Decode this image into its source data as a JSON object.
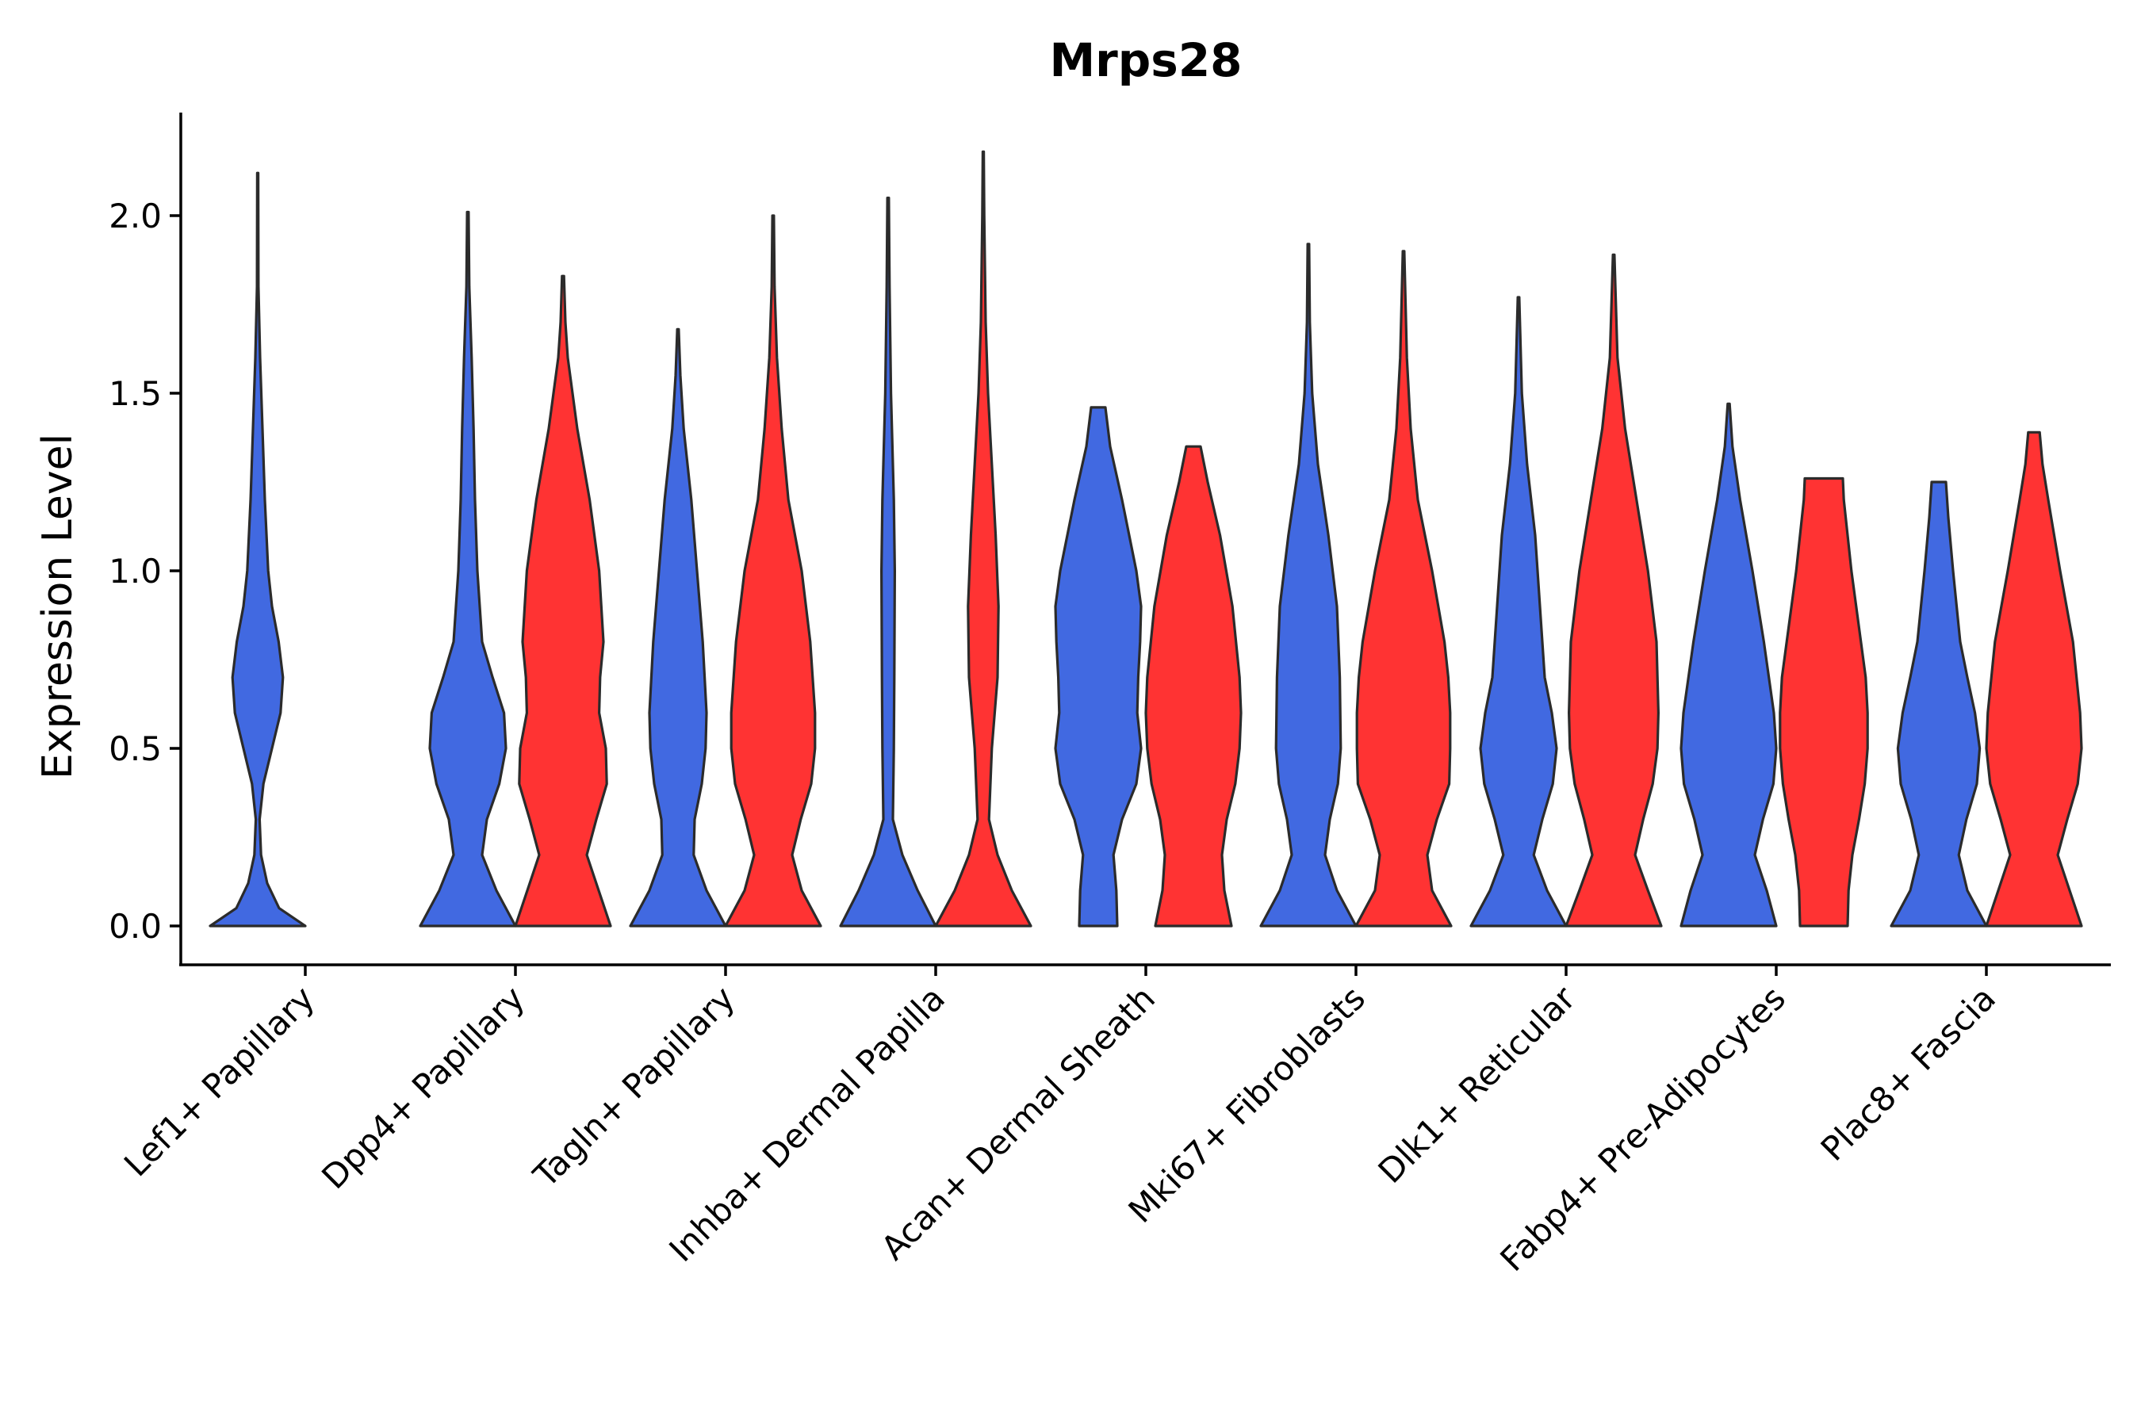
{
  "chart_data": {
    "type": "violin",
    "title": "Mrps28",
    "xlabel": "",
    "ylabel": "Expression Level",
    "ylim": [
      -0.11,
      2.3
    ],
    "yticks": [
      0.0,
      0.5,
      1.0,
      1.5,
      2.0
    ],
    "ytick_labels": [
      "0.0",
      "0.5",
      "1.0",
      "1.5",
      "2.0"
    ],
    "grid": false,
    "legend": "none",
    "series_colors": [
      "#4169E1",
      "#FF3333"
    ],
    "categories": [
      "Lef1+ Papillary",
      "Dpp4+ Papillary",
      "Tagln+ Papillary",
      "Inhba+ Dermal Papilla",
      "Acan+ Dermal Sheath",
      "Mki67+ Fibroblasts",
      "Dlk1+ Reticular",
      "Fabp4+ Pre-Adipocytes",
      "Plac8+ Fascia"
    ],
    "violins": [
      {
        "category": "Lef1+ Papillary",
        "group": 1,
        "color": "#4169E1",
        "max": 2.12,
        "profile": [
          [
            0,
            1.0
          ],
          [
            0.05,
            0.45
          ],
          [
            0.12,
            0.2
          ],
          [
            0.2,
            0.07
          ],
          [
            0.3,
            0.04
          ],
          [
            0.4,
            0.12
          ],
          [
            0.5,
            0.3
          ],
          [
            0.6,
            0.48
          ],
          [
            0.7,
            0.53
          ],
          [
            0.8,
            0.44
          ],
          [
            0.9,
            0.3
          ],
          [
            1.0,
            0.22
          ],
          [
            1.2,
            0.15
          ],
          [
            1.4,
            0.1
          ],
          [
            1.6,
            0.05
          ],
          [
            1.8,
            0.015
          ],
          [
            2.12,
            0.01
          ]
        ]
      },
      {
        "category": "Dpp4+ Papillary",
        "group": 1,
        "color": "#4169E1",
        "max": 2.01,
        "profile": [
          [
            0,
            1.0
          ],
          [
            0.1,
            0.6
          ],
          [
            0.2,
            0.3
          ],
          [
            0.3,
            0.4
          ],
          [
            0.4,
            0.66
          ],
          [
            0.5,
            0.8
          ],
          [
            0.6,
            0.76
          ],
          [
            0.7,
            0.52
          ],
          [
            0.8,
            0.3
          ],
          [
            1.0,
            0.2
          ],
          [
            1.2,
            0.15
          ],
          [
            1.4,
            0.12
          ],
          [
            1.6,
            0.08
          ],
          [
            1.8,
            0.03
          ],
          [
            2.01,
            0.015
          ]
        ]
      },
      {
        "category": "Dpp4+ Papillary",
        "group": 2,
        "color": "#FF3333",
        "max": 1.83,
        "profile": [
          [
            0,
            1.0
          ],
          [
            0.1,
            0.75
          ],
          [
            0.2,
            0.5
          ],
          [
            0.3,
            0.7
          ],
          [
            0.4,
            0.92
          ],
          [
            0.5,
            0.9
          ],
          [
            0.6,
            0.76
          ],
          [
            0.7,
            0.78
          ],
          [
            0.8,
            0.85
          ],
          [
            1.0,
            0.76
          ],
          [
            1.2,
            0.56
          ],
          [
            1.4,
            0.3
          ],
          [
            1.6,
            0.1
          ],
          [
            1.7,
            0.05
          ],
          [
            1.83,
            0.02
          ]
        ]
      },
      {
        "category": "Tagln+ Papillary",
        "group": 1,
        "color": "#4169E1",
        "max": 1.68,
        "profile": [
          [
            0,
            1.0
          ],
          [
            0.1,
            0.6
          ],
          [
            0.2,
            0.33
          ],
          [
            0.3,
            0.35
          ],
          [
            0.4,
            0.5
          ],
          [
            0.5,
            0.58
          ],
          [
            0.6,
            0.6
          ],
          [
            0.8,
            0.52
          ],
          [
            1.0,
            0.4
          ],
          [
            1.2,
            0.28
          ],
          [
            1.4,
            0.12
          ],
          [
            1.55,
            0.05
          ],
          [
            1.68,
            0.015
          ]
        ]
      },
      {
        "category": "Tagln+ Papillary",
        "group": 2,
        "color": "#FF3333",
        "max": 2.0,
        "profile": [
          [
            0,
            1.0
          ],
          [
            0.1,
            0.6
          ],
          [
            0.2,
            0.4
          ],
          [
            0.3,
            0.58
          ],
          [
            0.4,
            0.8
          ],
          [
            0.5,
            0.88
          ],
          [
            0.6,
            0.88
          ],
          [
            0.8,
            0.78
          ],
          [
            1.0,
            0.6
          ],
          [
            1.2,
            0.32
          ],
          [
            1.4,
            0.18
          ],
          [
            1.6,
            0.08
          ],
          [
            1.8,
            0.03
          ],
          [
            2.0,
            0.015
          ]
        ]
      },
      {
        "category": "Inhba+ Dermal Papilla",
        "group": 1,
        "color": "#4169E1",
        "max": 2.05,
        "profile": [
          [
            0,
            1.0
          ],
          [
            0.1,
            0.62
          ],
          [
            0.2,
            0.3
          ],
          [
            0.3,
            0.1
          ],
          [
            0.5,
            0.12
          ],
          [
            0.7,
            0.13
          ],
          [
            1.0,
            0.14
          ],
          [
            1.2,
            0.12
          ],
          [
            1.5,
            0.06
          ],
          [
            1.8,
            0.03
          ],
          [
            2.05,
            0.015
          ]
        ]
      },
      {
        "category": "Inhba+ Dermal Papilla",
        "group": 2,
        "color": "#FF3333",
        "max": 2.18,
        "profile": [
          [
            0,
            1.0
          ],
          [
            0.1,
            0.6
          ],
          [
            0.2,
            0.3
          ],
          [
            0.3,
            0.12
          ],
          [
            0.5,
            0.18
          ],
          [
            0.7,
            0.3
          ],
          [
            0.9,
            0.32
          ],
          [
            1.1,
            0.26
          ],
          [
            1.3,
            0.18
          ],
          [
            1.5,
            0.1
          ],
          [
            1.7,
            0.05
          ],
          [
            2.0,
            0.02
          ],
          [
            2.18,
            0.01
          ]
        ]
      },
      {
        "category": "Acan+ Dermal Sheath",
        "group": 1,
        "color": "#4169E1",
        "max": 1.46,
        "profile": [
          [
            0,
            0.4
          ],
          [
            0.1,
            0.38
          ],
          [
            0.2,
            0.32
          ],
          [
            0.3,
            0.5
          ],
          [
            0.4,
            0.8
          ],
          [
            0.5,
            0.9
          ],
          [
            0.6,
            0.82
          ],
          [
            0.7,
            0.84
          ],
          [
            0.8,
            0.88
          ],
          [
            0.9,
            0.9
          ],
          [
            1.0,
            0.8
          ],
          [
            1.2,
            0.5
          ],
          [
            1.35,
            0.25
          ],
          [
            1.46,
            0.15
          ]
        ]
      },
      {
        "category": "Acan+ Dermal Sheath",
        "group": 2,
        "color": "#FF3333",
        "max": 1.35,
        "profile": [
          [
            0,
            0.8
          ],
          [
            0.1,
            0.65
          ],
          [
            0.2,
            0.6
          ],
          [
            0.3,
            0.7
          ],
          [
            0.4,
            0.88
          ],
          [
            0.5,
            0.97
          ],
          [
            0.6,
            1.0
          ],
          [
            0.7,
            0.97
          ],
          [
            0.9,
            0.82
          ],
          [
            1.1,
            0.56
          ],
          [
            1.25,
            0.3
          ],
          [
            1.35,
            0.15
          ]
        ]
      },
      {
        "category": "Mki67+ Fibroblasts",
        "group": 1,
        "color": "#4169E1",
        "max": 1.92,
        "profile": [
          [
            0,
            1.0
          ],
          [
            0.1,
            0.6
          ],
          [
            0.2,
            0.35
          ],
          [
            0.3,
            0.45
          ],
          [
            0.4,
            0.62
          ],
          [
            0.5,
            0.68
          ],
          [
            0.7,
            0.66
          ],
          [
            0.9,
            0.6
          ],
          [
            1.1,
            0.42
          ],
          [
            1.3,
            0.2
          ],
          [
            1.5,
            0.08
          ],
          [
            1.7,
            0.03
          ],
          [
            1.92,
            0.015
          ]
        ]
      },
      {
        "category": "Mki67+ Fibroblasts",
        "group": 2,
        "color": "#FF3333",
        "max": 1.9,
        "profile": [
          [
            0,
            1.0
          ],
          [
            0.1,
            0.6
          ],
          [
            0.2,
            0.5
          ],
          [
            0.3,
            0.7
          ],
          [
            0.4,
            0.96
          ],
          [
            0.5,
            0.98
          ],
          [
            0.6,
            0.98
          ],
          [
            0.7,
            0.94
          ],
          [
            0.8,
            0.86
          ],
          [
            1.0,
            0.6
          ],
          [
            1.2,
            0.3
          ],
          [
            1.4,
            0.15
          ],
          [
            1.6,
            0.07
          ],
          [
            1.9,
            0.015
          ]
        ]
      },
      {
        "category": "Dlk1+ Reticular",
        "group": 1,
        "color": "#4169E1",
        "max": 1.77,
        "profile": [
          [
            0,
            1.0
          ],
          [
            0.1,
            0.6
          ],
          [
            0.2,
            0.32
          ],
          [
            0.3,
            0.5
          ],
          [
            0.4,
            0.72
          ],
          [
            0.5,
            0.8
          ],
          [
            0.6,
            0.7
          ],
          [
            0.7,
            0.55
          ],
          [
            0.9,
            0.45
          ],
          [
            1.1,
            0.35
          ],
          [
            1.3,
            0.18
          ],
          [
            1.5,
            0.07
          ],
          [
            1.77,
            0.015
          ]
        ]
      },
      {
        "category": "Dlk1+ Reticular",
        "group": 2,
        "color": "#FF3333",
        "max": 1.89,
        "profile": [
          [
            0,
            1.0
          ],
          [
            0.1,
            0.72
          ],
          [
            0.2,
            0.45
          ],
          [
            0.3,
            0.62
          ],
          [
            0.4,
            0.82
          ],
          [
            0.5,
            0.92
          ],
          [
            0.6,
            0.94
          ],
          [
            0.8,
            0.9
          ],
          [
            1.0,
            0.72
          ],
          [
            1.2,
            0.48
          ],
          [
            1.4,
            0.24
          ],
          [
            1.6,
            0.08
          ],
          [
            1.89,
            0.015
          ]
        ]
      },
      {
        "category": "Fabp4+ Pre-Adipocytes",
        "group": 1,
        "color": "#4169E1",
        "max": 1.47,
        "profile": [
          [
            0,
            1.0
          ],
          [
            0.1,
            0.8
          ],
          [
            0.2,
            0.55
          ],
          [
            0.3,
            0.72
          ],
          [
            0.4,
            0.94
          ],
          [
            0.5,
            1.0
          ],
          [
            0.6,
            0.95
          ],
          [
            0.8,
            0.74
          ],
          [
            1.0,
            0.5
          ],
          [
            1.2,
            0.24
          ],
          [
            1.35,
            0.08
          ],
          [
            1.47,
            0.02
          ]
        ]
      },
      {
        "category": "Fabp4+ Pre-Adipocytes",
        "group": 2,
        "color": "#FF3333",
        "max": 1.26,
        "profile": [
          [
            0,
            0.5
          ],
          [
            0.1,
            0.52
          ],
          [
            0.2,
            0.6
          ],
          [
            0.3,
            0.74
          ],
          [
            0.4,
            0.86
          ],
          [
            0.5,
            0.92
          ],
          [
            0.6,
            0.92
          ],
          [
            0.7,
            0.88
          ],
          [
            0.8,
            0.78
          ],
          [
            1.0,
            0.58
          ],
          [
            1.2,
            0.42
          ],
          [
            1.26,
            0.4
          ]
        ]
      },
      {
        "category": "Plac8+ Fascia",
        "group": 1,
        "color": "#4169E1",
        "max": 1.25,
        "profile": [
          [
            0,
            1.0
          ],
          [
            0.1,
            0.6
          ],
          [
            0.2,
            0.42
          ],
          [
            0.3,
            0.58
          ],
          [
            0.4,
            0.8
          ],
          [
            0.5,
            0.86
          ],
          [
            0.6,
            0.76
          ],
          [
            0.7,
            0.6
          ],
          [
            0.8,
            0.45
          ],
          [
            1.0,
            0.3
          ],
          [
            1.15,
            0.2
          ],
          [
            1.25,
            0.15
          ]
        ]
      },
      {
        "category": "Plac8+ Fascia",
        "group": 2,
        "color": "#FF3333",
        "max": 1.39,
        "profile": [
          [
            0,
            1.0
          ],
          [
            0.1,
            0.75
          ],
          [
            0.2,
            0.5
          ],
          [
            0.3,
            0.7
          ],
          [
            0.4,
            0.92
          ],
          [
            0.5,
            1.0
          ],
          [
            0.6,
            0.97
          ],
          [
            0.8,
            0.82
          ],
          [
            1.0,
            0.55
          ],
          [
            1.2,
            0.3
          ],
          [
            1.3,
            0.18
          ],
          [
            1.39,
            0.12
          ]
        ]
      }
    ]
  }
}
